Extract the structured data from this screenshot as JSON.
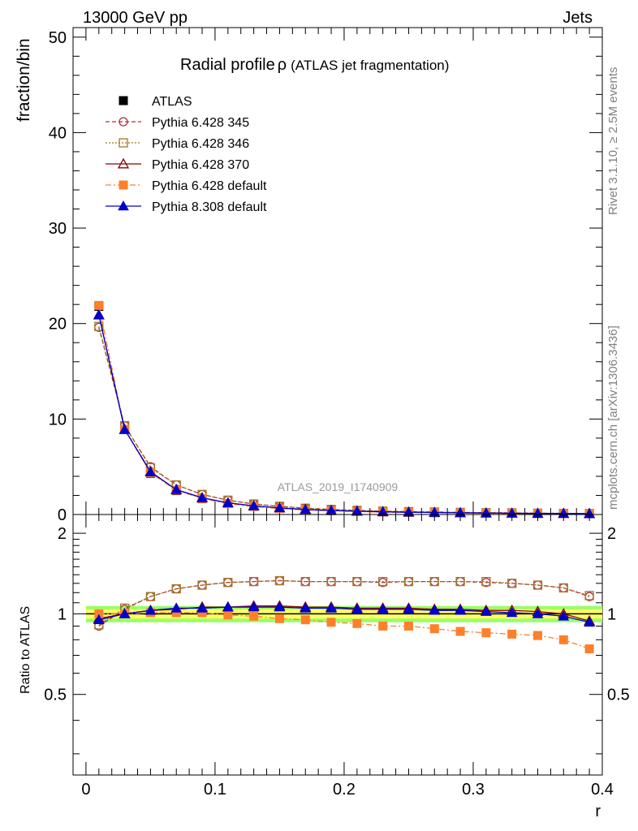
{
  "header": {
    "left": "13000 GeV pp",
    "right": "Jets"
  },
  "side_text": {
    "rivet": "Rivet 3.1.10, ≥ 2.5M events",
    "mcplots": "mcplots.cern.ch [arXiv:1306.3436]"
  },
  "watermark": "ATLAS_2019_I1740909",
  "colors": {
    "ATLAS": "#000000",
    "p345": "#b0303a",
    "p346": "#a07828",
    "p370": "#8b0000",
    "p6def": "#ff7f2a",
    "p8def": "#0000cc",
    "band_inner": "#ffff66",
    "band_outer": "#99ff66"
  },
  "chart_data": [
    {
      "type": "line",
      "title": "Radial profile ρ (ATLAS jet fragmentation)",
      "title_main": "Radial profile",
      "title_rho": "ρ",
      "title_sub": "(ATLAS jet fragmentation)",
      "ylabel": "fraction/bin",
      "xlim": [
        -0.01,
        0.4
      ],
      "ylim": [
        0,
        51
      ],
      "yticks": [
        0,
        10,
        20,
        30,
        40,
        50
      ],
      "ytick_labels": [
        "0",
        "10",
        "20",
        "30",
        "40",
        "50"
      ],
      "legend_position": "top-left",
      "x": [
        0.01,
        0.03,
        0.05,
        0.07,
        0.09,
        0.11,
        0.13,
        0.15,
        0.17,
        0.19,
        0.21,
        0.23,
        0.25,
        0.27,
        0.29,
        0.31,
        0.33,
        0.35,
        0.37,
        0.39
      ],
      "series": [
        {
          "name": "ATLAS",
          "key": "ATLAS",
          "values": [
            21.8,
            8.9,
            4.3,
            2.5,
            1.65,
            1.15,
            0.85,
            0.65,
            0.5,
            0.4,
            0.33,
            0.27,
            0.23,
            0.2,
            0.17,
            0.15,
            0.13,
            0.11,
            0.1,
            0.09
          ]
        },
        {
          "name": "Pythia 6.428 345",
          "key": "p345",
          "values": [
            19.6,
            9.3,
            5.0,
            3.1,
            2.1,
            1.5,
            1.1,
            0.86,
            0.66,
            0.53,
            0.43,
            0.35,
            0.3,
            0.26,
            0.22,
            0.19,
            0.17,
            0.14,
            0.12,
            0.1
          ]
        },
        {
          "name": "Pythia 6.428 346",
          "key": "p346",
          "values": [
            19.7,
            9.3,
            4.9,
            3.1,
            2.1,
            1.5,
            1.1,
            0.86,
            0.66,
            0.53,
            0.43,
            0.35,
            0.3,
            0.26,
            0.22,
            0.19,
            0.17,
            0.14,
            0.12,
            0.1
          ]
        },
        {
          "name": "Pythia 6.428 370",
          "key": "p370",
          "values": [
            20.9,
            8.9,
            4.5,
            2.6,
            1.75,
            1.22,
            0.9,
            0.69,
            0.53,
            0.42,
            0.35,
            0.28,
            0.24,
            0.21,
            0.18,
            0.15,
            0.13,
            0.11,
            0.1,
            0.09
          ]
        },
        {
          "name": "Pythia 6.428 default",
          "key": "p6def",
          "values": [
            21.9,
            8.9,
            4.35,
            2.55,
            1.68,
            1.13,
            0.83,
            0.62,
            0.48,
            0.38,
            0.31,
            0.25,
            0.21,
            0.18,
            0.15,
            0.13,
            0.11,
            0.1,
            0.08,
            0.07
          ]
        },
        {
          "name": "Pythia 8.308 default",
          "key": "p8def",
          "values": [
            20.9,
            8.9,
            4.45,
            2.6,
            1.75,
            1.22,
            0.9,
            0.69,
            0.53,
            0.42,
            0.35,
            0.28,
            0.24,
            0.21,
            0.18,
            0.15,
            0.13,
            0.11,
            0.1,
            0.08
          ]
        }
      ]
    },
    {
      "type": "line",
      "xlabel": "r",
      "ylabel": "Ratio to ATLAS",
      "xlim": [
        -0.01,
        0.4
      ],
      "ylim": [
        0.25,
        2.35
      ],
      "yscale": "log",
      "xticks": [
        0,
        0.1,
        0.2,
        0.3,
        0.4
      ],
      "xtick_labels": [
        "0",
        "0.1",
        "0.2",
        "0.3",
        "0.4"
      ],
      "yticks": [
        0.5,
        1,
        2
      ],
      "ytick_labels": [
        "0.5",
        "1",
        "2"
      ],
      "band_inner": 0.04,
      "band_outer": 0.07,
      "x": [
        0.01,
        0.03,
        0.05,
        0.07,
        0.09,
        0.11,
        0.13,
        0.15,
        0.17,
        0.19,
        0.21,
        0.23,
        0.25,
        0.27,
        0.29,
        0.31,
        0.33,
        0.35,
        0.37,
        0.39
      ],
      "series": [
        {
          "name": "Pythia 6.428 345",
          "key": "p345",
          "values": [
            0.9,
            1.04,
            1.16,
            1.24,
            1.28,
            1.31,
            1.32,
            1.33,
            1.32,
            1.32,
            1.32,
            1.31,
            1.32,
            1.32,
            1.32,
            1.31,
            1.3,
            1.28,
            1.25,
            1.16
          ]
        },
        {
          "name": "Pythia 6.428 346",
          "key": "p346",
          "values": [
            0.91,
            1.05,
            1.16,
            1.24,
            1.28,
            1.31,
            1.32,
            1.33,
            1.32,
            1.32,
            1.32,
            1.32,
            1.32,
            1.32,
            1.32,
            1.32,
            1.3,
            1.28,
            1.25,
            1.17
          ]
        },
        {
          "name": "Pythia 6.428 370",
          "key": "p370",
          "values": [
            0.96,
            1.0,
            1.03,
            1.04,
            1.06,
            1.06,
            1.07,
            1.07,
            1.06,
            1.06,
            1.05,
            1.05,
            1.05,
            1.04,
            1.04,
            1.03,
            1.03,
            1.02,
            1.0,
            0.94
          ]
        },
        {
          "name": "Pythia 6.428 default",
          "key": "p6def",
          "values": [
            1.0,
            1.0,
            1.01,
            1.01,
            1.01,
            0.99,
            0.98,
            0.96,
            0.95,
            0.93,
            0.92,
            0.9,
            0.9,
            0.88,
            0.86,
            0.85,
            0.84,
            0.83,
            0.8,
            0.74
          ]
        },
        {
          "name": "Pythia 8.308 default",
          "key": "p8def",
          "values": [
            0.95,
            1.0,
            1.03,
            1.05,
            1.05,
            1.06,
            1.06,
            1.06,
            1.05,
            1.05,
            1.04,
            1.04,
            1.04,
            1.03,
            1.03,
            1.02,
            1.01,
            1.0,
            0.98,
            0.93
          ]
        }
      ]
    }
  ]
}
